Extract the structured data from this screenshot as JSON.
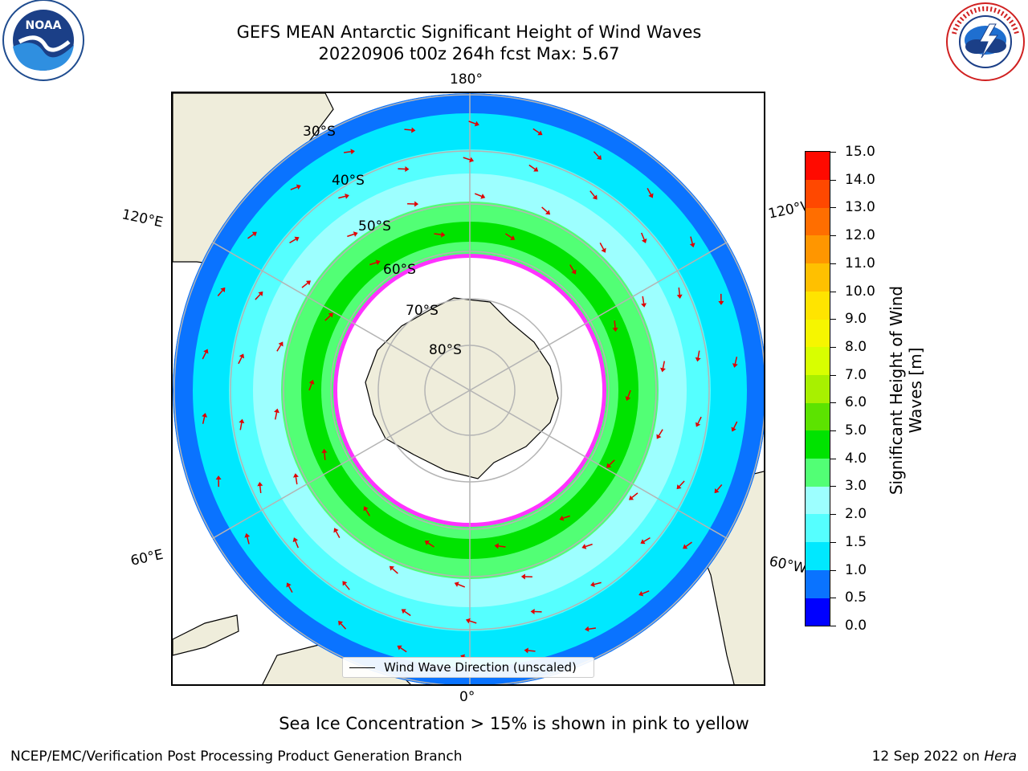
{
  "header": {
    "title_line1": "GEFS MEAN Antarctic Significant Height of Wind Waves",
    "title_line2": "20220906 t00z 264h fcst   Max: 5.67"
  },
  "map": {
    "longitude_labels": {
      "top": "180°",
      "bottom": "0°",
      "upper_left": "120°E",
      "lower_left": "60°E",
      "upper_right": "120°W",
      "lower_right": "60°W"
    },
    "latitude_labels": [
      "30°S",
      "40°S",
      "50°S",
      "60°S",
      "70°S",
      "80°S"
    ],
    "legend_label": "Wind Wave Direction (unscaled)",
    "colors": {
      "land": "#efeddb",
      "ocean_low": "#0a73ff",
      "ocean_mid": "#00ffff",
      "ocean_high": "#00e300",
      "ice_edge": "#ff33ff",
      "arrow": "#e00000",
      "grid": "#b4b4b4"
    }
  },
  "colorbar": {
    "title": "Significant Height of Wind Waves [m]",
    "title_line1": "Significant Height of Wind",
    "title_line2": "Waves [m]",
    "ticks": [
      "0.0",
      "0.5",
      "1.0",
      "1.5",
      "2.0",
      "3.0",
      "4.0",
      "5.0",
      "6.0",
      "7.0",
      "8.0",
      "9.0",
      "10.0",
      "11.0",
      "12.0",
      "13.0",
      "14.0",
      "15.0"
    ],
    "colors": [
      "#0000ff",
      "#0a73ff",
      "#00e8ff",
      "#55ffff",
      "#9dffff",
      "#52ff75",
      "#00e300",
      "#5ce300",
      "#a8f000",
      "#d8ff00",
      "#f6f600",
      "#ffe400",
      "#ffc000",
      "#ff9600",
      "#ff6e00",
      "#ff4800",
      "#ff0a00"
    ]
  },
  "footer": {
    "note": "Sea Ice Concentration > 15% is shown in pink to yellow",
    "left": "NCEP/EMC/Verification Post Processing Product Generation Branch",
    "right_prefix": "12 Sep 2022 on",
    "right_host": "Hera"
  },
  "logos": {
    "noaa": "NOAA",
    "noaa_ring": "NATIONAL OCEANIC AND ATMOSPHERIC ADMINISTRATION · U.S. DEPARTMENT OF COMMERCE",
    "nws_ring": "NATIONAL WEATHER SERVICE"
  }
}
